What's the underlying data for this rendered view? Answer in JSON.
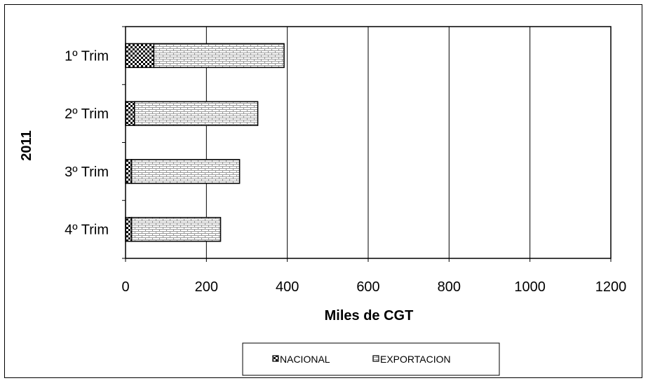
{
  "chart_data": {
    "type": "bar",
    "orientation": "horizontal",
    "stacked": true,
    "categories": [
      "1º Trim",
      "2º Trim",
      "3º Trim",
      "4º Trim"
    ],
    "group_label": "2011",
    "series": [
      {
        "name": "NACIONAL",
        "values": [
          70,
          22,
          15,
          15
        ],
        "pattern": "checker"
      },
      {
        "name": "EXPORTACION",
        "values": [
          322,
          305,
          267,
          220
        ],
        "pattern": "brick"
      }
    ],
    "xlabel": "Miles de CGT",
    "xlim": [
      0,
      1200
    ],
    "xticks": [
      "0",
      "200",
      "400",
      "600",
      "800",
      "1000",
      "1200"
    ],
    "grid": "vertical",
    "legend": "bottom"
  }
}
